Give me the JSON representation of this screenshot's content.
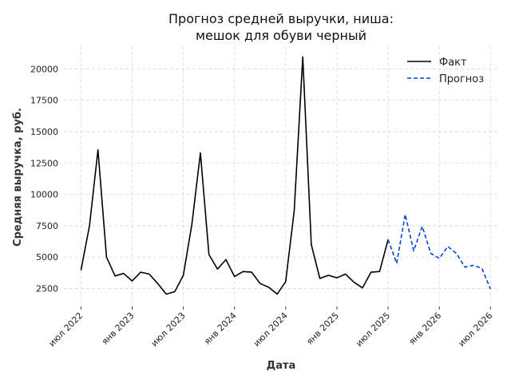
{
  "chart_data": {
    "type": "line",
    "title_lines": [
      "Прогноз средней выручки, ниша:",
      "мешок для обуви черный"
    ],
    "xlabel": "Дата",
    "ylabel": "Средняя выручка, руб.",
    "x_ticks": [
      "июл 2022",
      "янв 2023",
      "июл 2023",
      "янв 2024",
      "июл 2024",
      "янв 2025",
      "июл 2025",
      "янв 2026",
      "июл 2026"
    ],
    "y_ticks": [
      "2500",
      "5000",
      "7500",
      "10000",
      "12500",
      "15000",
      "17500",
      "20000"
    ],
    "y_tick_values": [
      2500,
      5000,
      7500,
      10000,
      12500,
      15000,
      17500,
      20000
    ],
    "ylim": [
      1200,
      21800
    ],
    "xlim": [
      "2022-05",
      "2026-08"
    ],
    "grid": true,
    "legend_position": "top-right",
    "series": [
      {
        "name": "Факт",
        "color": "#000000",
        "style": "solid",
        "x": [
          "2022-07",
          "2022-08",
          "2022-09",
          "2022-10",
          "2022-11",
          "2022-12",
          "2023-01",
          "2023-02",
          "2023-03",
          "2023-04",
          "2023-05",
          "2023-06",
          "2023-07",
          "2023-08",
          "2023-09",
          "2023-10",
          "2023-11",
          "2023-12",
          "2024-01",
          "2024-02",
          "2024-03",
          "2024-04",
          "2024-05",
          "2024-06",
          "2024-07",
          "2024-08",
          "2024-09",
          "2024-10",
          "2024-11",
          "2024-12",
          "2025-01",
          "2025-02",
          "2025-03",
          "2025-04",
          "2025-05",
          "2025-06",
          "2025-07"
        ],
        "values": [
          3950,
          7500,
          13550,
          5000,
          3500,
          3700,
          3100,
          3800,
          3650,
          2900,
          2050,
          2250,
          3550,
          7600,
          13300,
          5200,
          4050,
          4800,
          3450,
          3850,
          3800,
          2900,
          2600,
          2050,
          3050,
          8700,
          20950,
          6000,
          3300,
          3550,
          3350,
          3650,
          3000,
          2550,
          3800,
          3850,
          6400
        ]
      },
      {
        "name": "Прогноз",
        "color": "#0047d6",
        "style": "dashed",
        "x": [
          "2025-07",
          "2025-08",
          "2025-09",
          "2025-10",
          "2025-11",
          "2025-12",
          "2026-01",
          "2026-02",
          "2026-03",
          "2026-04",
          "2026-05",
          "2026-06",
          "2026-07"
        ],
        "values": [
          6400,
          4500,
          8400,
          5500,
          7450,
          5300,
          4900,
          5850,
          5300,
          4200,
          4350,
          4100,
          2450
        ]
      }
    ]
  }
}
